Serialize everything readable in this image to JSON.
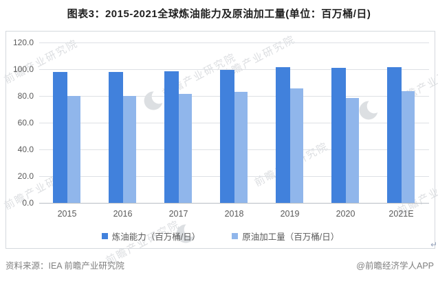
{
  "title": "图表3：2015-2021全球炼油能力及原油加工量(单位：百万桶/日)",
  "chart_data": {
    "type": "bar",
    "categories": [
      "2015",
      "2016",
      "2017",
      "2018",
      "2019",
      "2020",
      "2021E"
    ],
    "series": [
      {
        "name": "炼油能力（百万桶/日）",
        "color": "#4181dc",
        "values": [
          97.8,
          98.0,
          98.7,
          99.5,
          101.4,
          101.1,
          101.6
        ]
      },
      {
        "name": "原油加工量（百万桶/日）",
        "color": "#90b6eb",
        "values": [
          79.9,
          80.2,
          81.8,
          83.0,
          85.7,
          78.7,
          83.5
        ]
      }
    ],
    "title": "图表3：2015-2021全球炼油能力及原油加工量(单位：百万桶/日)",
    "xlabel": "",
    "ylabel": "",
    "ylim": [
      0,
      120
    ],
    "ytick_step": 20,
    "ytick_decimals": 1,
    "grid": true,
    "legend_position": "bottom"
  },
  "footer": {
    "source": "资料来源：IEA 前瞻产业研究院",
    "credit": "@前瞻经济学人APP"
  },
  "watermark": {
    "text": "前瞻产业研究院"
  },
  "return_mark": "↵"
}
